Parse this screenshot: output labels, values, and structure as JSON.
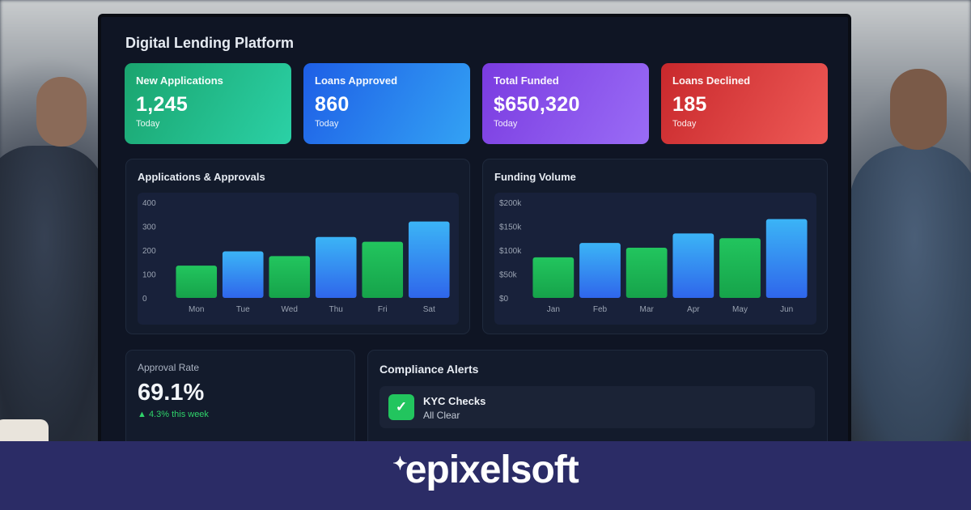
{
  "app": {
    "title": "Digital Lending Platform"
  },
  "kpis": [
    {
      "label": "New Applications",
      "value": "1,245",
      "sub": "Today"
    },
    {
      "label": "Loans Approved",
      "value": "860",
      "sub": "Today"
    },
    {
      "label": "Total Funded",
      "value": "$650,320",
      "sub": "Today"
    },
    {
      "label": "Loans Declined",
      "value": "185",
      "sub": "Today"
    }
  ],
  "colors": {
    "green_bar_top": "#22c55e",
    "green_bar_bottom": "#16a34a",
    "blue_bar_top": "#3bb4f6",
    "blue_bar_bottom": "#2f66eb",
    "axis_text": "#9aa3b2"
  },
  "chart_data": [
    {
      "type": "bar",
      "title": "Applications & Approvals",
      "categories": [
        "Mon",
        "Tue",
        "Wed",
        "Thu",
        "Fri",
        "Sat"
      ],
      "values": [
        135,
        195,
        175,
        255,
        235,
        320
      ],
      "bar_colors": [
        "green",
        "blue",
        "green",
        "blue",
        "green",
        "blue"
      ],
      "ylim": [
        0,
        400
      ],
      "yticks": [
        0,
        100,
        200,
        300,
        400
      ],
      "ytick_labels": [
        "0",
        "100",
        "200",
        "300",
        "400"
      ]
    },
    {
      "type": "bar",
      "title": "Funding Volume",
      "categories": [
        "Jan",
        "Feb",
        "Mar",
        "Apr",
        "May",
        "Jun"
      ],
      "values": [
        85000,
        115000,
        105000,
        135000,
        125000,
        165000
      ],
      "bar_colors": [
        "green",
        "blue",
        "green",
        "blue",
        "green",
        "blue"
      ],
      "ylim": [
        0,
        200000
      ],
      "yticks": [
        0,
        50000,
        100000,
        150000,
        200000
      ],
      "ytick_labels": [
        "$0",
        "$50k",
        "$100k",
        "$150k",
        "$200k"
      ]
    }
  ],
  "approval": {
    "label": "Approval Rate",
    "value": "69.1%",
    "change": "▲ 4.3% this week"
  },
  "compliance": {
    "title": "Compliance Alerts",
    "items": [
      {
        "name": "KYC Checks",
        "status": "All Clear",
        "icon": "check-icon",
        "glyph": "✓"
      }
    ]
  },
  "brand": {
    "logo_text": "epixelsoft",
    "spark_glyph": "✦"
  }
}
